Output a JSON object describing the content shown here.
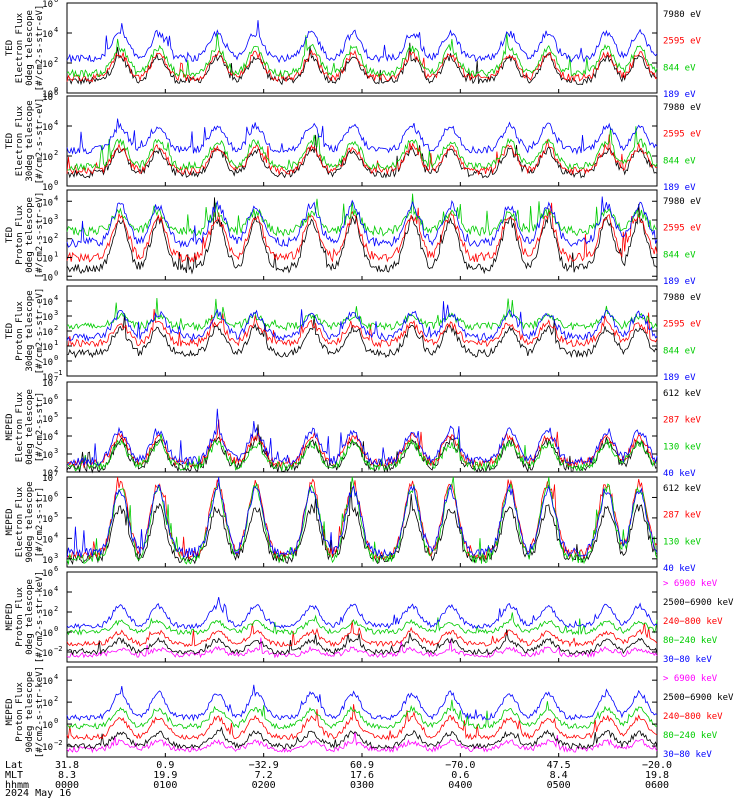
{
  "chart_data": {
    "type": "line",
    "date": "2024 May 16",
    "x_axis": {
      "rows": [
        {
          "label": "Lat",
          "values": [
            "31.8",
            "0.9",
            "−32.9",
            "60.9",
            "−70.0",
            "47.5",
            "−20.0"
          ]
        },
        {
          "label": "MLT",
          "values": [
            "8.3",
            "19.9",
            "7.2",
            "17.6",
            "0.6",
            "8.4",
            "19.8"
          ]
        },
        {
          "label": "hhmm",
          "values": [
            "0000",
            "0100",
            "0200",
            "0300",
            "0400",
            "0500",
            "0600"
          ]
        }
      ]
    },
    "panels": [
      {
        "ylabel": [
          "TED",
          "Electron Flux",
          "0deg telescope",
          "[#/cm2-s-str-eV]"
        ],
        "y_ticks": [
          [
            "10",
            "6"
          ],
          [
            "10",
            "4"
          ],
          [
            "10",
            "2"
          ],
          [
            "10",
            "0"
          ]
        ],
        "ylim_log10": [
          0,
          6
        ],
        "series": [
          {
            "name": "7980 eV",
            "color": "#000000",
            "baseline": 0.8,
            "peak": 2.4
          },
          {
            "name": "2595 eV",
            "color": "#ff0000",
            "baseline": 1.0,
            "peak": 2.6
          },
          {
            "name": "844 eV",
            "color": "#00cc00",
            "baseline": 1.3,
            "peak": 3.0
          },
          {
            "name": "189 eV",
            "color": "#0000ff",
            "baseline": 2.3,
            "peak": 4.0
          }
        ]
      },
      {
        "ylabel": [
          "TED",
          "Electron Flux",
          "30deg telescope",
          "[#/cm2-s-str-eV]"
        ],
        "y_ticks": [
          [
            "10",
            "6"
          ],
          [
            "10",
            "4"
          ],
          [
            "10",
            "2"
          ],
          [
            "10",
            "0"
          ]
        ],
        "ylim_log10": [
          0,
          6
        ],
        "series": [
          {
            "name": "7980 eV",
            "color": "#000000",
            "baseline": 0.8,
            "peak": 2.4
          },
          {
            "name": "2595 eV",
            "color": "#ff0000",
            "baseline": 1.0,
            "peak": 2.6
          },
          {
            "name": "844 eV",
            "color": "#00cc00",
            "baseline": 1.3,
            "peak": 3.0
          },
          {
            "name": "189 eV",
            "color": "#0000ff",
            "baseline": 2.4,
            "peak": 4.0
          }
        ]
      },
      {
        "ylabel": [
          "TED",
          "Proton Flux",
          "0deg telescope",
          "[#/cm2-s-str-eV]"
        ],
        "y_ticks": [
          [
            "10",
            "4"
          ],
          [
            "10",
            "3"
          ],
          [
            "10",
            "2"
          ],
          [
            "10",
            "1"
          ],
          [
            "10",
            "0"
          ]
        ],
        "ylim_log10": [
          -0.2,
          4.6
        ],
        "series": [
          {
            "name": "7980 eV",
            "color": "#000000",
            "baseline": 0.4,
            "peak": 3.0
          },
          {
            "name": "2595 eV",
            "color": "#ff0000",
            "baseline": 1.0,
            "peak": 3.2
          },
          {
            "name": "844 eV",
            "color": "#00cc00",
            "baseline": 2.4,
            "peak": 3.4
          },
          {
            "name": "189 eV",
            "color": "#0000ff",
            "baseline": 1.8,
            "peak": 3.8
          }
        ]
      },
      {
        "ylabel": [
          "TED",
          "Proton Flux",
          "30deg telescope",
          "[#/cm2-s-str-eV]"
        ],
        "y_ticks": [
          [
            "10",
            "4"
          ],
          [
            "10",
            "3"
          ],
          [
            "10",
            "2"
          ],
          [
            "10",
            "1"
          ],
          [
            "10",
            "0"
          ],
          [
            "10",
            "−1"
          ]
        ],
        "ylim_log10": [
          -1,
          5
        ],
        "series": [
          {
            "name": "7980 eV",
            "color": "#000000",
            "baseline": 0.5,
            "peak": 2.2
          },
          {
            "name": "2595 eV",
            "color": "#ff0000",
            "baseline": 1.2,
            "peak": 2.5
          },
          {
            "name": "844 eV",
            "color": "#00cc00",
            "baseline": 2.3,
            "peak": 3.0
          },
          {
            "name": "189 eV",
            "color": "#0000ff",
            "baseline": 1.6,
            "peak": 3.2
          }
        ]
      },
      {
        "ylabel": [
          "MEPED",
          "Electron Flux",
          "0deg telescope",
          "[#/cm2-s-str]"
        ],
        "y_ticks": [
          [
            "10",
            "7"
          ],
          [
            "10",
            "6"
          ],
          [
            "10",
            "5"
          ],
          [
            "10",
            "4"
          ],
          [
            "10",
            "3"
          ],
          [
            "10",
            "2"
          ]
        ],
        "ylim_log10": [
          2,
          7
        ],
        "series": [
          {
            "name": "612 keV",
            "color": "#000000",
            "baseline": 2.2,
            "peak": 3.7
          },
          {
            "name": "287 keV",
            "color": "#ff0000",
            "baseline": 2.5,
            "peak": 4.0
          },
          {
            "name": "130 keV",
            "color": "#00cc00",
            "baseline": 2.3,
            "peak": 3.6
          },
          {
            "name": "40 keV",
            "color": "#0000ff",
            "baseline": 2.6,
            "peak": 4.3
          }
        ]
      },
      {
        "ylabel": [
          "MEPED",
          "Electron Flux",
          "90deg telescope",
          "[#/cm2-s-str]"
        ],
        "y_ticks": [
          [
            "10",
            "7"
          ],
          [
            "10",
            "6"
          ],
          [
            "10",
            "5"
          ],
          [
            "10",
            "4"
          ],
          [
            "10",
            "3"
          ]
        ],
        "ylim_log10": [
          2.6,
          7
        ],
        "series": [
          {
            "name": "612 keV",
            "color": "#000000",
            "baseline": 3.0,
            "peak": 5.5
          },
          {
            "name": "287 keV",
            "color": "#ff0000",
            "baseline": 3.2,
            "peak": 6.7
          },
          {
            "name": "130 keV",
            "color": "#00cc00",
            "baseline": 3.0,
            "peak": 6.5
          },
          {
            "name": "40 keV",
            "color": "#0000ff",
            "baseline": 3.3,
            "peak": 6.4
          }
        ]
      },
      {
        "ylabel": [
          "MEPED",
          "Proton Flux",
          "0deg telescope",
          "[#/cm2-s-str-keV]"
        ],
        "y_ticks": [
          [
            "10",
            "6"
          ],
          [
            "10",
            "4"
          ],
          [
            "10",
            "2"
          ],
          [
            "10",
            "0"
          ],
          [
            "10",
            "−2"
          ]
        ],
        "ylim_log10": [
          -3,
          6
        ],
        "series": [
          {
            "name": "> 6900 keV",
            "color": "#ff00ff",
            "baseline": -2.3,
            "peak": -1.7
          },
          {
            "name": "2500−6900 keV",
            "color": "#000000",
            "baseline": -2.0,
            "peak": -0.8
          },
          {
            "name": "240−800 keV",
            "color": "#ff0000",
            "baseline": -1.2,
            "peak": 0.0
          },
          {
            "name": "80−240 keV",
            "color": "#00cc00",
            "baseline": 0.0,
            "peak": 1.0
          },
          {
            "name": "30−80 keV",
            "color": "#0000ff",
            "baseline": 0.6,
            "peak": 2.6
          }
        ]
      },
      {
        "ylabel": [
          "MEPED",
          "Proton Flux",
          "90deg telescope",
          "[#/cm2-s-str-keV]"
        ],
        "y_ticks": [
          [
            "10",
            "4"
          ],
          [
            "10",
            "2"
          ],
          [
            "10",
            "0"
          ],
          [
            "10",
            "−2"
          ]
        ],
        "ylim_log10": [
          -3,
          5.2
        ],
        "series": [
          {
            "name": "> 6900 keV",
            "color": "#ff00ff",
            "baseline": -2.3,
            "peak": -1.6
          },
          {
            "name": "2500−6900 keV",
            "color": "#000000",
            "baseline": -2.0,
            "peak": -0.8
          },
          {
            "name": "240−800 keV",
            "color": "#ff0000",
            "baseline": -1.2,
            "peak": 0.6
          },
          {
            "name": "80−240 keV",
            "color": "#00cc00",
            "baseline": -0.2,
            "peak": 1.4
          },
          {
            "name": "30−80 keV",
            "color": "#0000ff",
            "baseline": 0.6,
            "peak": 2.8
          }
        ]
      }
    ]
  }
}
